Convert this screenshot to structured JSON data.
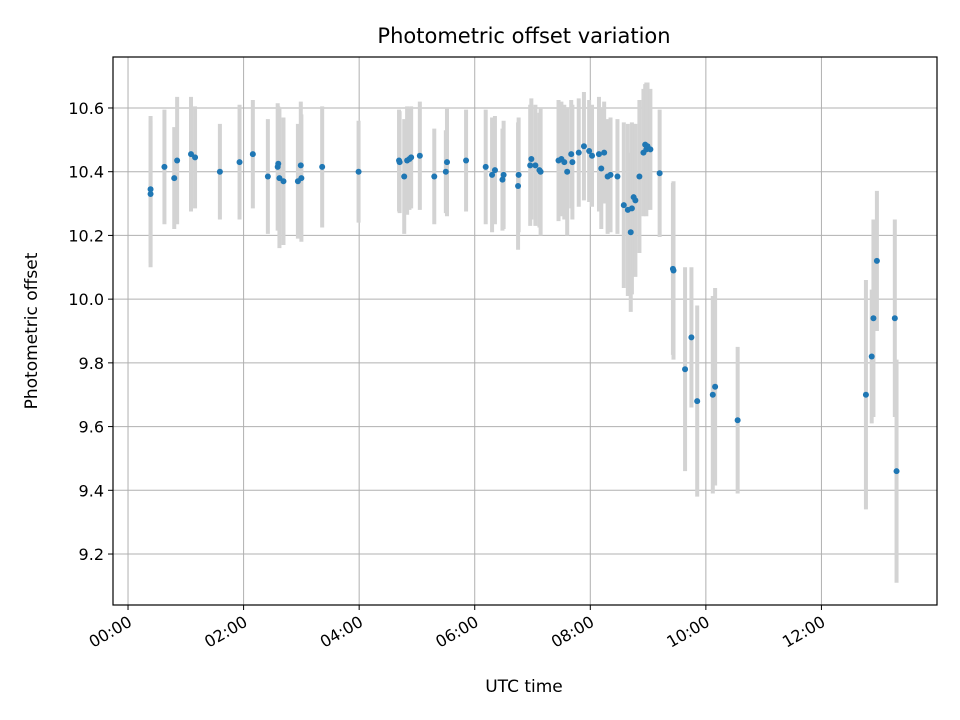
{
  "chart_data": {
    "type": "scatter",
    "title": "Photometric offset variation",
    "xlabel": "UTC time",
    "ylabel": "Photometric offset",
    "x_tick_labels": [
      "00:00",
      "02:00",
      "04:00",
      "06:00",
      "08:00",
      "10:00",
      "12:00"
    ],
    "x_ticks_hours": [
      0,
      2,
      4,
      6,
      8,
      10,
      12
    ],
    "y_ticks": [
      9.2,
      9.4,
      9.6,
      9.8,
      10.0,
      10.2,
      10.4,
      10.6
    ],
    "y_tick_labels": [
      "9.2",
      "9.4",
      "9.6",
      "9.8",
      "10.0",
      "10.2",
      "10.4",
      "10.6"
    ],
    "xlim_hours": [
      -0.26,
      14.0
    ],
    "ylim": [
      9.04,
      10.76
    ],
    "grid": true,
    "series": [
      {
        "marker_color": "#1f77b4",
        "errorbar_color": "#d3d3d3",
        "x_hours": [
          0.39,
          0.39,
          0.63,
          0.8,
          0.85,
          1.09,
          1.16,
          1.59,
          1.93,
          2.16,
          2.42,
          2.59,
          2.6,
          2.62,
          2.69,
          2.94,
          2.99,
          3.0,
          3.36,
          3.99,
          4.69,
          4.7,
          4.78,
          4.83,
          4.87,
          4.9,
          5.05,
          5.3,
          5.5,
          5.52,
          5.85,
          6.19,
          6.3,
          6.35,
          6.48,
          6.5,
          6.75,
          6.76,
          6.96,
          6.98,
          7.05,
          7.12,
          7.14,
          7.45,
          7.5,
          7.55,
          7.6,
          7.67,
          7.69,
          7.8,
          7.89,
          7.98,
          8.03,
          8.15,
          8.19,
          8.24,
          8.3,
          8.35,
          8.47,
          8.58,
          8.65,
          8.7,
          8.72,
          8.75,
          8.78,
          8.85,
          8.92,
          8.95,
          8.97,
          8.99,
          9.04,
          9.2,
          9.43,
          9.44,
          9.64,
          9.75,
          9.85,
          10.12,
          10.16,
          10.55,
          12.77,
          12.87,
          12.9,
          12.96,
          13.27,
          13.3
        ],
        "y": [
          10.33,
          10.345,
          10.415,
          10.38,
          10.435,
          10.455,
          10.445,
          10.4,
          10.43,
          10.455,
          10.385,
          10.415,
          10.425,
          10.38,
          10.37,
          10.37,
          10.42,
          10.38,
          10.415,
          10.4,
          10.435,
          10.43,
          10.385,
          10.435,
          10.44,
          10.445,
          10.45,
          10.385,
          10.4,
          10.43,
          10.435,
          10.415,
          10.39,
          10.405,
          10.375,
          10.39,
          10.355,
          10.39,
          10.42,
          10.44,
          10.42,
          10.405,
          10.4,
          10.435,
          10.44,
          10.43,
          10.4,
          10.455,
          10.43,
          10.46,
          10.48,
          10.465,
          10.45,
          10.455,
          10.41,
          10.46,
          10.385,
          10.39,
          10.385,
          10.295,
          10.28,
          10.21,
          10.285,
          10.32,
          10.31,
          10.385,
          10.46,
          10.485,
          10.47,
          10.48,
          10.47,
          10.395,
          10.095,
          10.09,
          9.78,
          9.88,
          9.68,
          9.7,
          9.725,
          9.62,
          9.7,
          9.82,
          9.94,
          10.12,
          9.94,
          9.46
        ],
        "yerr": [
          0.23,
          0.23,
          0.18,
          0.16,
          0.2,
          0.18,
          0.16,
          0.15,
          0.18,
          0.17,
          0.18,
          0.2,
          0.18,
          0.22,
          0.2,
          0.18,
          0.2,
          0.2,
          0.19,
          0.16,
          0.16,
          0.16,
          0.18,
          0.17,
          0.16,
          0.16,
          0.17,
          0.15,
          0.13,
          0.17,
          0.16,
          0.18,
          0.18,
          0.17,
          0.16,
          0.17,
          0.2,
          0.18,
          0.19,
          0.19,
          0.19,
          0.18,
          0.2,
          0.19,
          0.18,
          0.18,
          0.2,
          0.17,
          0.18,
          0.17,
          0.17,
          0.16,
          0.16,
          0.18,
          0.19,
          0.16,
          0.18,
          0.18,
          0.18,
          0.26,
          0.27,
          0.25,
          0.27,
          0.23,
          0.24,
          0.24,
          0.2,
          0.19,
          0.21,
          0.2,
          0.19,
          0.2,
          0.27,
          0.28,
          0.32,
          0.22,
          0.3,
          0.31,
          0.31,
          0.23,
          0.36,
          0.21,
          0.31,
          0.22,
          0.31,
          0.35
        ]
      }
    ]
  }
}
